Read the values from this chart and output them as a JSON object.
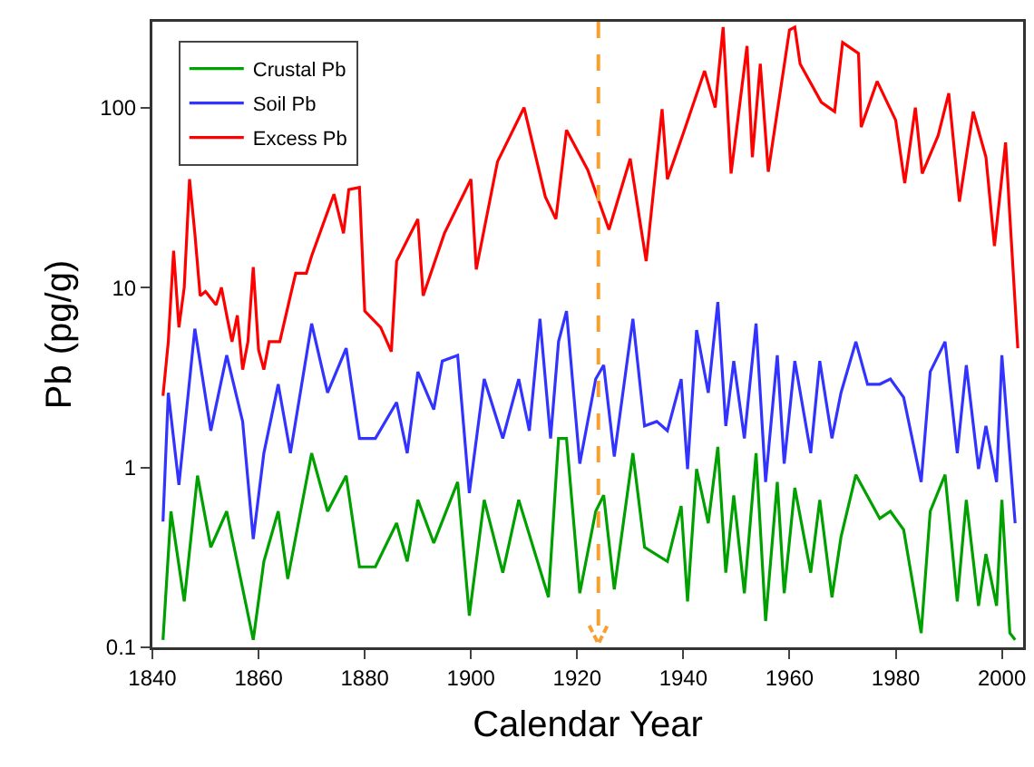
{
  "chart_data": {
    "type": "line",
    "xlabel": "Calendar Year",
    "ylabel": "Pb (pg/g)",
    "log": "y",
    "xlim": [
      1840,
      2004
    ],
    "ylim": [
      0.1,
      300
    ],
    "xticks": [
      1840,
      1860,
      1880,
      1900,
      1920,
      1940,
      1960,
      1980,
      2000
    ],
    "yticks": [
      0.1,
      1,
      10,
      100
    ],
    "grid": false,
    "legend": "top left",
    "marker": "none",
    "line_style": "solid",
    "ref_lines": [
      {
        "axis": "x",
        "value": 1924,
        "color": "#f5a030",
        "line_style": "dashed"
      }
    ],
    "series": [
      {
        "name": "Crustal Pb",
        "color": "#00a000",
        "x": [
          1842,
          1843.5,
          1846,
          1848.5,
          1851,
          1854,
          1859,
          1861,
          1863.7,
          1865.5,
          1870,
          1873,
          1876.5,
          1879,
          1882,
          1886,
          1888,
          1890,
          1893,
          1897.5,
          1899.7,
          1902.5,
          1906,
          1909,
          1914.6,
          1916.5,
          1918,
          1920.5,
          1923.5,
          1925,
          1927,
          1930.5,
          1932.7,
          1937,
          1939.6,
          1940.8,
          1942.5,
          1944.7,
          1946.5,
          1948,
          1949.5,
          1951.5,
          1953.7,
          1955.5,
          1957.7,
          1959,
          1961,
          1964,
          1965.7,
          1968,
          1969.7,
          1972.5,
          1977,
          1979,
          1981.5,
          1984.8,
          1986.5,
          1989.3,
          1991.6,
          1993.3,
          1995.6,
          1997,
          1999,
          2000,
          2001.5,
          2002.5
        ],
        "values": [
          0.11,
          0.57,
          0.18,
          0.9,
          0.36,
          0.57,
          0.11,
          0.3,
          0.57,
          0.24,
          1.2,
          0.57,
          0.9,
          0.28,
          0.28,
          0.49,
          0.3,
          0.66,
          0.38,
          0.83,
          0.15,
          0.66,
          0.26,
          0.66,
          0.19,
          1.45,
          1.45,
          0.2,
          0.57,
          0.7,
          0.21,
          1.2,
          0.36,
          0.3,
          0.61,
          0.18,
          0.98,
          0.49,
          1.3,
          0.26,
          0.7,
          0.2,
          1.2,
          0.14,
          0.83,
          0.2,
          0.77,
          0.26,
          0.66,
          0.19,
          0.41,
          0.91,
          0.52,
          0.57,
          0.45,
          0.12,
          0.57,
          0.91,
          0.18,
          0.66,
          0.17,
          0.33,
          0.17,
          0.66,
          0.12,
          0.11
        ]
      },
      {
        "name": "Soil Pb",
        "color": "#3333ff",
        "x": [
          1842,
          1843,
          1845,
          1848,
          1851,
          1854,
          1857,
          1859,
          1861,
          1863.7,
          1866,
          1870,
          1873,
          1876.5,
          1879,
          1882,
          1886,
          1888,
          1890,
          1893,
          1894.6,
          1897.5,
          1899.7,
          1902.5,
          1906,
          1909,
          1911,
          1913,
          1915,
          1916.5,
          1918,
          1920.5,
          1923.5,
          1925,
          1927,
          1930.5,
          1932.7,
          1935,
          1937,
          1939.6,
          1940.8,
          1942.5,
          1944.7,
          1946.5,
          1948,
          1949.5,
          1951.5,
          1953.7,
          1955.5,
          1957.7,
          1959,
          1961,
          1964,
          1965.7,
          1968,
          1969.7,
          1972.5,
          1974.7,
          1977,
          1979,
          1981.5,
          1984.8,
          1986.5,
          1989.3,
          1991.6,
          1993.3,
          1995.6,
          1997,
          1999,
          2000,
          2002.5
        ],
        "values": [
          0.5,
          2.6,
          0.8,
          5.9,
          1.6,
          4.2,
          1.8,
          0.4,
          1.2,
          2.9,
          1.2,
          6.3,
          2.6,
          4.6,
          1.45,
          1.45,
          2.3,
          1.2,
          3.4,
          2.1,
          3.9,
          4.2,
          0.72,
          3.1,
          1.45,
          3.1,
          1.6,
          6.7,
          1.45,
          5,
          7.4,
          1.05,
          3.1,
          3.7,
          1.15,
          6.7,
          1.7,
          1.8,
          1.6,
          3.1,
          0.98,
          5.8,
          2.6,
          8.3,
          1.7,
          3.9,
          1.45,
          6.3,
          0.83,
          4.2,
          1.05,
          3.9,
          1.2,
          3.9,
          1.45,
          2.6,
          5,
          2.9,
          2.9,
          3.1,
          2.45,
          0.83,
          3.4,
          5,
          1.2,
          3.7,
          0.98,
          1.7,
          0.83,
          4.2,
          0.49
        ]
      },
      {
        "name": "Excess Pb",
        "color": "#ff0000",
        "x": [
          1842,
          1843,
          1844,
          1845,
          1846,
          1847,
          1848,
          1849,
          1850,
          1852,
          1853,
          1854,
          1855,
          1856,
          1857,
          1858,
          1859,
          1860,
          1861,
          1862,
          1864,
          1866,
          1867,
          1869,
          1870,
          1874.2,
          1876,
          1877,
          1879,
          1880,
          1883,
          1885,
          1886,
          1890,
          1891,
          1895,
          1900,
          1901,
          1905,
          1910,
          1914,
          1916,
          1918,
          1922,
          1926,
          1930,
          1933,
          1936,
          1937,
          1940,
          1944,
          1946,
          1947.5,
          1949,
          1952,
          1953,
          1954.5,
          1956,
          1960,
          1961,
          1962,
          1966,
          1968.5,
          1970,
          1973,
          1973.5,
          1976.5,
          1980,
          1981.7,
          1983.7,
          1985,
          1988,
          1990,
          1992,
          1994.6,
          1997,
          1998.6,
          2000.7,
          2001.5,
          2003
        ],
        "values": [
          2.5,
          5,
          16,
          6,
          10,
          40,
          20,
          9,
          9.5,
          8,
          10,
          7,
          5,
          7,
          3.5,
          5,
          13,
          4.5,
          3.5,
          5,
          5,
          9,
          12,
          12,
          15,
          33,
          20,
          35,
          36,
          7.4,
          6,
          4.4,
          14,
          24,
          9,
          20,
          40,
          12.6,
          50,
          100,
          32,
          24,
          75,
          45,
          21,
          52,
          14,
          98,
          40,
          72,
          160,
          100,
          280,
          43,
          220,
          53,
          175,
          44,
          270,
          280,
          175,
          107,
          95,
          230,
          200,
          78,
          140,
          85,
          38,
          100,
          43,
          70,
          120,
          30,
          95,
          53,
          17,
          64,
          25,
          4.6
        ]
      }
    ]
  }
}
